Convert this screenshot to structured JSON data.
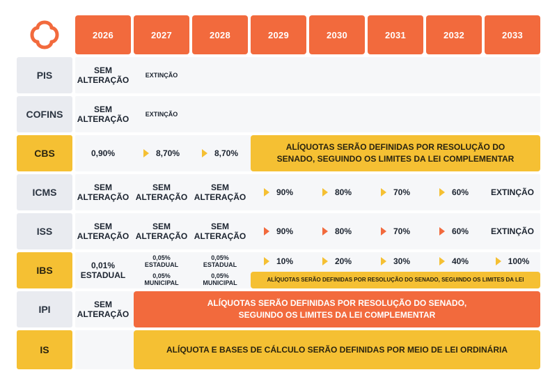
{
  "colors": {
    "accent_orange": "#f26a3d",
    "accent_yellow": "#f5c033",
    "label_gray": "#e9ebf0"
  },
  "logo": {
    "icon": "clover-outline-logo-icon"
  },
  "years": [
    "2026",
    "2027",
    "2028",
    "2029",
    "2030",
    "2031",
    "2032",
    "2033"
  ],
  "rows": {
    "pis": {
      "label": "PIS",
      "c2026": "SEM\nALTERAÇÃO",
      "c2027": "EXTINÇÃO"
    },
    "cofins": {
      "label": "COFINS",
      "c2026": "SEM\nALTERAÇÃO",
      "c2027": "EXTINÇÃO"
    },
    "cbs": {
      "label": "CBS",
      "c2026": "0,90%",
      "c2027": "8,70%",
      "c2028": "8,70%",
      "banner": "ALÍQUOTAS SERÃO DEFINIDAS POR RESOLUÇÃO DO\nSENADO, SEGUINDO OS LIMITES DA LEI COMPLEMENTAR"
    },
    "icms": {
      "label": "ICMS",
      "c2026": "SEM\nALTERAÇÃO",
      "c2027": "SEM\nALTERAÇÃO",
      "c2028": "SEM\nALTERAÇÃO",
      "c2029": "90%",
      "c2030": "80%",
      "c2031": "70%",
      "c2032": "60%",
      "c2033": "EXTINÇÃO"
    },
    "iss": {
      "label": "ISS",
      "c2026": "SEM\nALTERAÇÃO",
      "c2027": "SEM\nALTERAÇÃO",
      "c2028": "SEM\nALTERAÇÃO",
      "c2029": "90%",
      "c2030": "80%",
      "c2031": "70%",
      "c2032": "60%",
      "c2033": "EXTINÇÃO"
    },
    "ibs": {
      "label": "IBS",
      "c2026": "0,01%\nESTADUAL",
      "c2027_top": "0,05%\nESTADUAL",
      "c2027_bottom": "0,05%\nMUNICIPAL",
      "c2028_top": "0,05%\nESTADUAL",
      "c2028_bottom": "0,05%\nMUNICIPAL",
      "c2029": "10%",
      "c2030": "20%",
      "c2031": "30%",
      "c2032": "40%",
      "c2033": "100%",
      "banner": "ALÍQUOTAS SERÃO DEFINIDAS POR RESOLUÇÃO DO SENADO, SEGUINDO OS LIMITES DA LEI"
    },
    "ipi": {
      "label": "IPI",
      "c2026": "SEM\nALTERAÇÃO",
      "banner": "ALÍQUOTAS SERÃO DEFINIDAS POR RESOLUÇÃO DO SENADO,\nSEGUINDO OS LIMITES DA LEI COMPLEMENTAR"
    },
    "is": {
      "label": "IS",
      "banner": "ALÍQUOTA E BASES DE CÁLCULO SERÃO DEFINIDAS POR MEIO DE LEI ORDINÁRIA"
    }
  }
}
